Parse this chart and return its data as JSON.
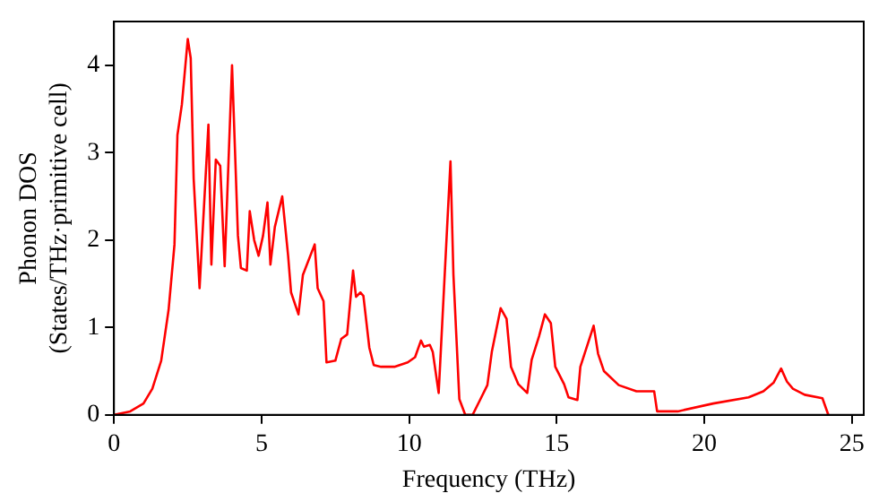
{
  "chart_data": {
    "type": "line",
    "xlabel": "Frequency (THz)",
    "ylabel": "Phonon DOS\n(States/THz·primitive cell)",
    "x": [
      0,
      0.55,
      1.0,
      1.3,
      1.6,
      1.85,
      2.05,
      2.15,
      2.3,
      2.5,
      2.6,
      2.7,
      2.9,
      3.2,
      3.3,
      3.45,
      3.6,
      3.75,
      4.0,
      4.2,
      4.3,
      4.5,
      4.6,
      4.75,
      4.9,
      5.05,
      5.2,
      5.3,
      5.45,
      5.7,
      5.9,
      6.0,
      6.25,
      6.4,
      6.8,
      6.9,
      7.1,
      7.2,
      7.5,
      7.7,
      7.9,
      8.1,
      8.2,
      8.35,
      8.45,
      8.65,
      8.8,
      9.05,
      9.5,
      9.95,
      10.2,
      10.4,
      10.5,
      10.7,
      10.8,
      11.0,
      11.4,
      11.5,
      11.7,
      11.9,
      12.15,
      12.4,
      12.65,
      12.8,
      13.1,
      13.3,
      13.45,
      13.7,
      14.0,
      14.15,
      14.4,
      14.6,
      14.8,
      14.95,
      15.25,
      15.4,
      15.7,
      15.8,
      16.25,
      16.4,
      16.6,
      17.1,
      17.7,
      18.3,
      18.4,
      19.1,
      20.3,
      21.5,
      22.0,
      22.35,
      22.6,
      22.8,
      23.0,
      23.4,
      24.0,
      24.2
    ],
    "series": [
      {
        "color": "#ff0000",
        "values": [
          0,
          0.04,
          0.13,
          0.3,
          0.62,
          1.2,
          1.95,
          3.2,
          3.55,
          4.3,
          4.08,
          2.7,
          1.45,
          3.32,
          1.72,
          2.92,
          2.85,
          1.7,
          4.0,
          2.05,
          1.68,
          1.65,
          2.33,
          2.0,
          1.82,
          2.05,
          2.43,
          1.72,
          2.15,
          2.5,
          1.82,
          1.4,
          1.15,
          1.6,
          1.95,
          1.45,
          1.3,
          0.6,
          0.62,
          0.87,
          0.92,
          1.65,
          1.35,
          1.4,
          1.36,
          0.77,
          0.57,
          0.55,
          0.55,
          0.6,
          0.66,
          0.85,
          0.78,
          0.8,
          0.72,
          0.25,
          2.9,
          1.6,
          0.18,
          0,
          0,
          0.17,
          0.34,
          0.72,
          1.22,
          1.1,
          0.55,
          0.35,
          0.25,
          0.63,
          0.9,
          1.15,
          1.05,
          0.55,
          0.35,
          0.2,
          0.17,
          0.55,
          1.02,
          0.7,
          0.5,
          0.34,
          0.27,
          0.27,
          0.04,
          0.04,
          0.13,
          0.2,
          0.27,
          0.37,
          0.53,
          0.38,
          0.3,
          0.23,
          0.19,
          0
        ]
      }
    ],
    "xlim": [
      0,
      25.4
    ],
    "xticks": [
      0,
      5,
      10,
      15,
      20,
      25
    ],
    "ylim": [
      0,
      4.5
    ],
    "yticks": [
      0,
      1,
      2,
      3,
      4
    ],
    "grid": false,
    "legend": false,
    "marker": "none",
    "line_style": "solid"
  }
}
